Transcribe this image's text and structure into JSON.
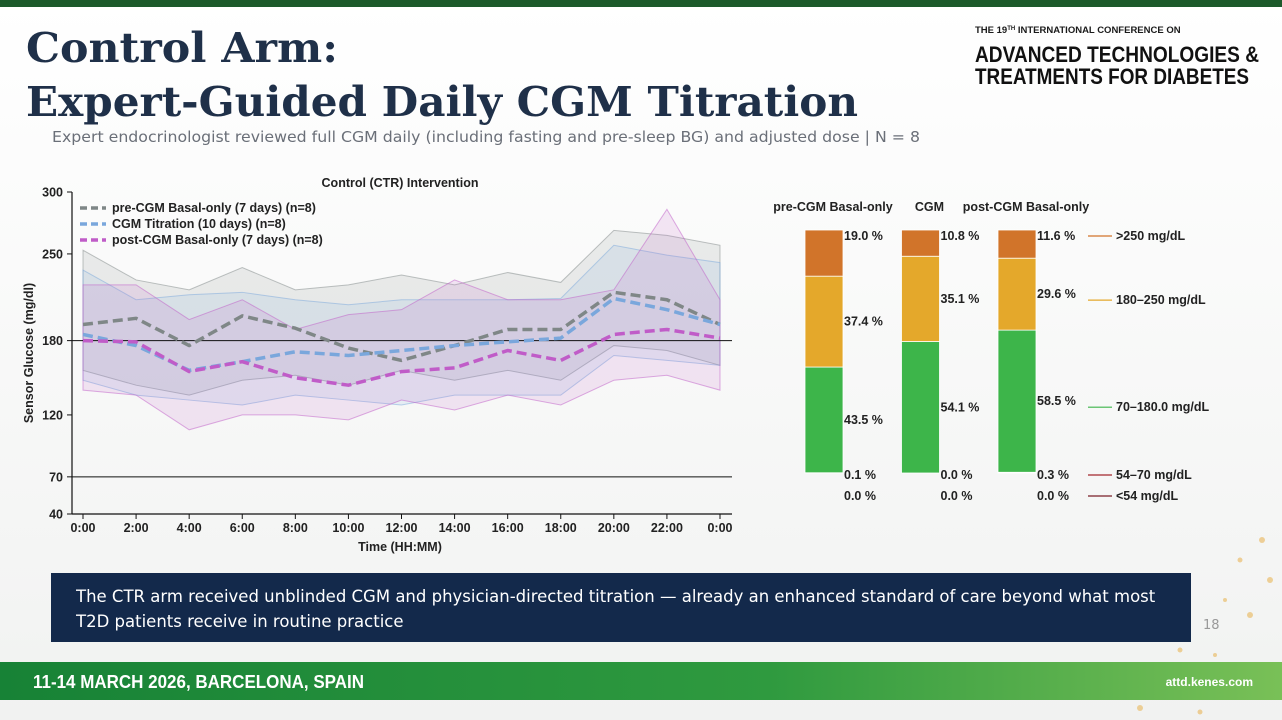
{
  "header": {
    "title_line1": "Control Arm:",
    "title_line2": "Expert-Guided Daily CGM Titration",
    "subtitle": "Expert endocrinologist reviewed full CGM daily (including fasting and pre-sleep BG) and adjusted dose  |  N = 8"
  },
  "logo": {
    "prefix": "THE 19",
    "superscript": "TH",
    "suffix": " INTERNATIONAL CONFERENCE ON",
    "line1": "ADVANCED TECHNOLOGIES &",
    "line2": "TREATMENTS FOR DIABETES"
  },
  "callout": "The CTR arm received unblinded CGM and physician-directed titration — already an enhanced standard of care beyond what most T2D patients receive in routine practice",
  "page_number": "18",
  "footer": {
    "event": "11-14 MARCH 2026, BARCELONA, SPAIN",
    "website": "attd.kenes.com"
  },
  "chart_data": [
    {
      "type": "line",
      "title": "Control (CTR) Intervention",
      "x_label": "Time (HH:MM)",
      "y_label": "Sensor Glucose (mg/dl)",
      "x": [
        0,
        2,
        4,
        6,
        8,
        10,
        12,
        14,
        16,
        18,
        20,
        22,
        24
      ],
      "xlim": [
        0,
        24
      ],
      "xticks": [
        {
          "value": 0,
          "label": "0:00"
        },
        {
          "value": 2,
          "label": "2:00"
        },
        {
          "value": 4,
          "label": "4:00"
        },
        {
          "value": 6,
          "label": "6:00"
        },
        {
          "value": 8,
          "label": "8:00"
        },
        {
          "value": 10,
          "label": "10:00"
        },
        {
          "value": 12,
          "label": "12:00"
        },
        {
          "value": 14,
          "label": "14:00"
        },
        {
          "value": 16,
          "label": "16:00"
        },
        {
          "value": 18,
          "label": "18:00"
        },
        {
          "value": 20,
          "label": "20:00"
        },
        {
          "value": 22,
          "label": "22:00"
        },
        {
          "value": 24,
          "label": "0:00"
        }
      ],
      "ylim": [
        40,
        300
      ],
      "yticks": [
        40,
        70,
        120,
        180,
        250,
        300
      ],
      "reference_lines": [
        70,
        180
      ],
      "grid": false,
      "series": [
        {
          "name": "pre-CGM Basal-only (7 days) (n=8)",
          "color": "#7f8787",
          "values": [
            193,
            198,
            176,
            200,
            190,
            174,
            164,
            176,
            189,
            189,
            219,
            213,
            193
          ],
          "upper": [
            253,
            229,
            221,
            239,
            221,
            225,
            233,
            225,
            235,
            227,
            269,
            265,
            257
          ],
          "lower": [
            156,
            144,
            136,
            148,
            152,
            144,
            156,
            148,
            156,
            148,
            176,
            172,
            160
          ]
        },
        {
          "name": "CGM Titration (10 days) (n=8)",
          "color": "#7aa7dc",
          "values": [
            185,
            176,
            156,
            163,
            171,
            168,
            172,
            176,
            179,
            182,
            214,
            205,
            193
          ],
          "upper": [
            237,
            213,
            217,
            219,
            213,
            209,
            213,
            213,
            213,
            214,
            257,
            249,
            243
          ],
          "lower": [
            148,
            136,
            132,
            128,
            136,
            132,
            128,
            136,
            136,
            136,
            168,
            164,
            160
          ]
        },
        {
          "name": "post-CGM Basal-only (7 days) (n=8)",
          "color": "#c05cc8",
          "values": [
            180,
            179,
            155,
            163,
            150,
            144,
            155,
            158,
            172,
            164,
            185,
            189,
            182
          ],
          "upper": [
            225,
            225,
            197,
            213,
            189,
            201,
            205,
            229,
            213,
            213,
            221,
            286,
            213
          ],
          "lower": [
            140,
            136,
            108,
            120,
            120,
            116,
            132,
            124,
            136,
            128,
            148,
            152,
            140
          ]
        }
      ]
    },
    {
      "type": "stacked_bar",
      "categories": [
        "pre-CGM Basal-only",
        "CGM",
        "post-CGM Basal-only"
      ],
      "category_colors": [
        "#808a8e",
        "#6a9fdc",
        "#c060c8"
      ],
      "ylim": [
        0,
        100
      ],
      "series": [
        {
          "name": "<54 mg/dL",
          "color": "#7a1f28",
          "values": [
            0.0,
            0.0,
            0.0
          ],
          "value_labels": [
            "0.0 %",
            "0.0 %",
            "0.0 %"
          ]
        },
        {
          "name": "54–70 mg/dL",
          "color": "#a3262e",
          "values": [
            0.1,
            0.0,
            0.3
          ],
          "value_labels": [
            "0.1 %",
            "0.0 %",
            "0.3 %"
          ]
        },
        {
          "name": "70–180.0 mg/dL",
          "color": "#3db54a",
          "values": [
            43.5,
            54.1,
            58.5
          ],
          "value_labels": [
            "43.5 %",
            "54.1 %",
            "58.5 %"
          ]
        },
        {
          "name": "180–250 mg/dL",
          "color": "#e4a82b",
          "values": [
            37.4,
            35.1,
            29.6
          ],
          "value_labels": [
            "37.4 %",
            "35.1 %",
            "29.6 %"
          ]
        },
        {
          "name": ">250 mg/dL",
          "color": "#d1742a",
          "values": [
            19.0,
            10.8,
            11.6
          ],
          "value_labels": [
            "19.0 %",
            "10.8 %",
            "11.6 %"
          ]
        }
      ]
    }
  ]
}
